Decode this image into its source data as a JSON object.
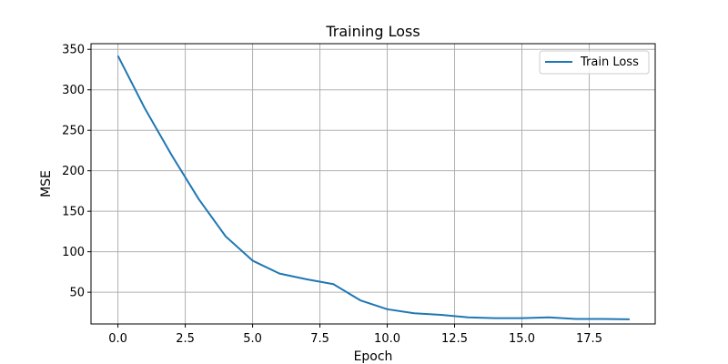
{
  "chart_data": {
    "type": "line",
    "title": "Training Loss",
    "xlabel": "Epoch",
    "ylabel": "MSE",
    "xlim": [
      -1.0,
      19.95
    ],
    "ylim": [
      10.8,
      357.0
    ],
    "xticks": [
      0.0,
      2.5,
      5.0,
      7.5,
      10.0,
      12.5,
      15.0,
      17.5
    ],
    "xtick_labels": [
      "0.0",
      "2.5",
      "5.0",
      "7.5",
      "10.0",
      "12.5",
      "15.0",
      "17.5"
    ],
    "yticks": [
      50,
      100,
      150,
      200,
      250,
      300,
      350
    ],
    "ytick_labels": [
      "50",
      "100",
      "150",
      "200",
      "250",
      "300",
      "350"
    ],
    "grid": true,
    "legend_position": "top-right",
    "series": [
      {
        "name": "Train Loss",
        "color": "#1f77b4",
        "x": [
          0,
          1,
          2,
          3,
          4,
          5,
          6,
          7,
          8,
          9,
          10,
          11,
          12,
          13,
          14,
          15,
          16,
          17,
          18,
          19
        ],
        "y": [
          342,
          277,
          219,
          165,
          119,
          89,
          73,
          66,
          60,
          40,
          29,
          24,
          22,
          19,
          18,
          18,
          19,
          17,
          17,
          16.5
        ]
      }
    ]
  }
}
